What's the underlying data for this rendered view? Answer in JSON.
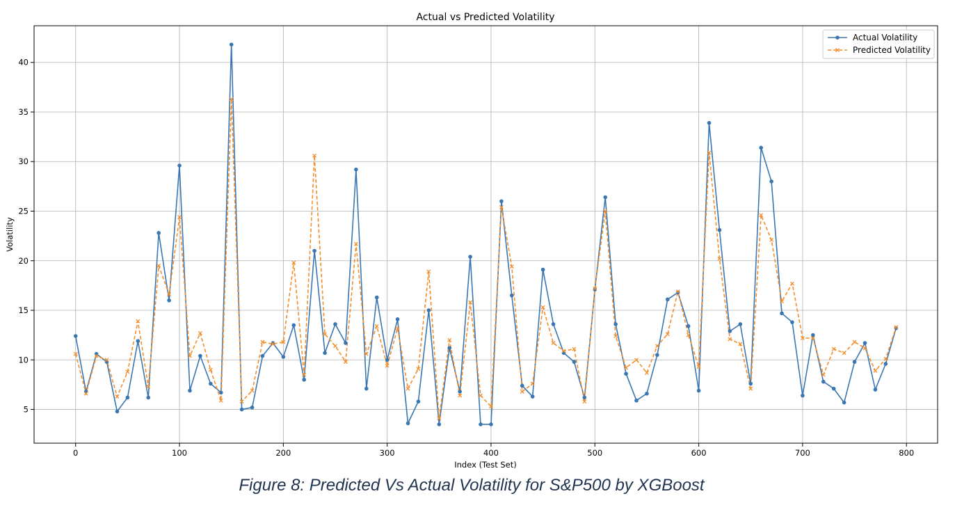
{
  "chart_data": {
    "type": "line",
    "title": "Actual vs Predicted Volatility",
    "xlabel": "Index (Test Set)",
    "ylabel": "Volatility",
    "xlim": [
      -40,
      830
    ],
    "ylim": [
      1.6,
      43.7
    ],
    "xticks": [
      0,
      100,
      200,
      300,
      400,
      500,
      600,
      700,
      800
    ],
    "yticks": [
      5,
      10,
      15,
      20,
      25,
      30,
      35,
      40
    ],
    "grid": true,
    "legend_position": "top-right",
    "x": [
      0,
      10,
      20,
      30,
      40,
      50,
      60,
      70,
      80,
      90,
      100,
      110,
      120,
      130,
      140,
      150,
      160,
      170,
      180,
      190,
      200,
      210,
      220,
      230,
      240,
      250,
      260,
      270,
      280,
      290,
      300,
      310,
      320,
      330,
      340,
      350,
      360,
      370,
      380,
      390,
      400,
      410,
      420,
      430,
      440,
      450,
      460,
      470,
      480,
      490,
      500,
      510,
      520,
      530,
      540,
      550,
      560,
      570,
      580,
      590,
      600,
      610,
      620,
      630,
      640,
      650,
      660,
      670,
      680,
      690,
      700,
      710,
      720,
      730,
      740,
      750,
      760,
      770,
      780,
      790
    ],
    "series": [
      {
        "name": "Actual Volatility",
        "color": "#3a76b1",
        "style": "solid",
        "marker": "circle",
        "values": [
          12.4,
          6.8,
          10.6,
          9.8,
          4.8,
          6.2,
          11.9,
          6.2,
          22.8,
          16.0,
          29.6,
          6.9,
          10.4,
          7.6,
          6.7,
          41.8,
          5.0,
          5.2,
          10.4,
          11.7,
          10.3,
          13.5,
          8.0,
          21.0,
          10.7,
          13.6,
          11.7,
          29.2,
          7.1,
          16.3,
          10.0,
          14.1,
          3.6,
          5.8,
          15.0,
          3.5,
          11.2,
          6.8,
          20.4,
          3.5,
          3.5,
          26.0,
          16.5,
          7.4,
          6.3,
          19.1,
          13.6,
          10.7,
          9.8,
          6.2,
          17.1,
          26.4,
          13.6,
          8.6,
          5.9,
          6.6,
          10.5,
          16.1,
          16.8,
          13.4,
          6.9,
          33.9,
          23.1,
          12.9,
          13.6,
          7.6,
          31.4,
          28.0,
          14.7,
          13.8,
          6.4,
          12.5,
          7.8,
          7.1,
          5.7,
          9.8,
          11.7,
          7.0,
          9.6,
          13.2
        ]
      },
      {
        "name": "Predicted Volatility",
        "color": "#f28e2b",
        "style": "dashed",
        "marker": "x",
        "values": [
          10.6,
          6.6,
          10.4,
          10.0,
          6.3,
          8.8,
          13.9,
          7.3,
          19.5,
          16.6,
          24.4,
          10.4,
          12.7,
          9.0,
          5.9,
          36.3,
          5.8,
          6.9,
          11.8,
          11.6,
          11.8,
          19.8,
          8.5,
          30.6,
          12.6,
          11.4,
          9.8,
          21.7,
          10.6,
          13.4,
          9.4,
          13.2,
          7.1,
          9.1,
          18.9,
          4.1,
          12.0,
          6.4,
          15.8,
          6.4,
          5.3,
          25.4,
          19.4,
          6.8,
          7.6,
          15.3,
          11.7,
          10.9,
          11.1,
          5.8,
          17.2,
          25.0,
          12.4,
          9.2,
          10.0,
          8.7,
          11.4,
          12.6,
          16.9,
          12.5,
          9.3,
          30.9,
          20.2,
          12.1,
          11.6,
          7.1,
          24.6,
          22.1,
          15.9,
          17.7,
          12.2,
          12.2,
          8.5,
          11.1,
          10.7,
          11.8,
          11.2,
          8.9,
          10.1,
          13.3
        ]
      }
    ]
  },
  "caption": "Figure 8: Predicted Vs Actual Volatility for S&P500 by XGBoost"
}
